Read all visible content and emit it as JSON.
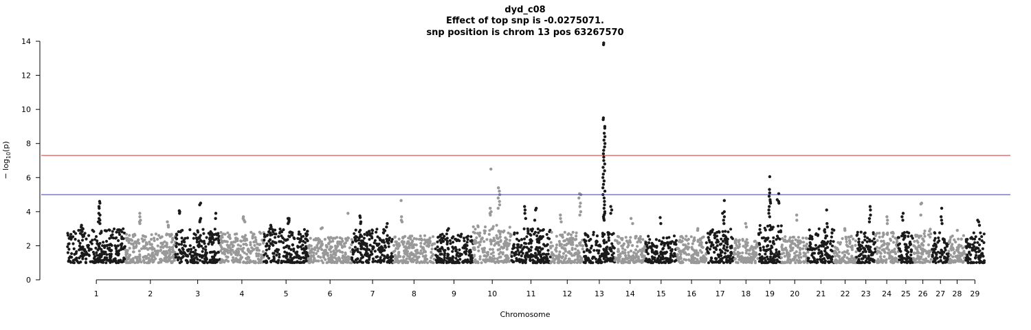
{
  "chart_data": {
    "type": "scatter",
    "title": "dyd_c08",
    "subtitle_lines": [
      "Effect of top snp is -0.0275071.",
      "snp position is chrom 13 pos 63267570"
    ],
    "xlabel": "Chromosome",
    "ylabel_prefix": "− log",
    "ylabel_sub": "10",
    "ylabel_suffix": "(p)",
    "ylim": [
      0,
      14
    ],
    "yticks": [
      0,
      2,
      4,
      6,
      8,
      10,
      12,
      14
    ],
    "grid": false,
    "colors": {
      "odd": "#1a1a1a",
      "even": "#999999"
    },
    "thresholds": [
      {
        "value": 7.3,
        "color": "#cc3333"
      },
      {
        "value": 5.0,
        "color": "#3333cc"
      }
    ],
    "chromosomes": [
      {
        "label": "1",
        "size": 158
      },
      {
        "label": "2",
        "size": 137
      },
      {
        "label": "3",
        "size": 121
      },
      {
        "label": "4",
        "size": 120
      },
      {
        "label": "5",
        "size": 121
      },
      {
        "label": "6",
        "size": 119
      },
      {
        "label": "7",
        "size": 113
      },
      {
        "label": "8",
        "size": 113
      },
      {
        "label": "9",
        "size": 105
      },
      {
        "label": "10",
        "size": 104
      },
      {
        "label": "11",
        "size": 107
      },
      {
        "label": "12",
        "size": 91
      },
      {
        "label": "13",
        "size": 84
      },
      {
        "label": "14",
        "size": 84
      },
      {
        "label": "15",
        "size": 85
      },
      {
        "label": "16",
        "size": 81
      },
      {
        "label": "17",
        "size": 75
      },
      {
        "label": "18",
        "size": 66
      },
      {
        "label": "19",
        "size": 64
      },
      {
        "label": "20",
        "size": 72
      },
      {
        "label": "21",
        "size": 71
      },
      {
        "label": "22",
        "size": 61
      },
      {
        "label": "23",
        "size": 52
      },
      {
        "label": "24",
        "size": 62
      },
      {
        "label": "25",
        "size": 42
      },
      {
        "label": "26",
        "size": 51
      },
      {
        "label": "27",
        "size": 45
      },
      {
        "label": "28",
        "size": 46
      },
      {
        "label": "29",
        "size": 51
      }
    ],
    "background_max": [
      3.0,
      2.7,
      3.0,
      2.8,
      3.0,
      2.5,
      3.0,
      2.6,
      2.7,
      3.2,
      3.0,
      2.8,
      2.8,
      2.6,
      2.6,
      2.6,
      3.0,
      2.4,
      3.2,
      2.6,
      3.0,
      2.6,
      2.8,
      2.8,
      2.8,
      3.0,
      2.8,
      2.6,
      2.8
    ],
    "peaks": [
      {
        "chrom": "1",
        "pos": 0.55,
        "values": [
          4.6,
          4.5,
          4.3,
          4.2,
          3.9,
          3.8,
          3.6,
          3.5,
          3.4,
          3.3
        ]
      },
      {
        "chrom": "1",
        "pos": 0.25,
        "values": [
          3.2,
          3.1,
          3.0
        ]
      },
      {
        "chrom": "2",
        "pos": 0.3,
        "values": [
          3.9,
          3.7,
          3.5,
          3.4,
          3.3
        ]
      },
      {
        "chrom": "2",
        "pos": 0.85,
        "values": [
          3.4,
          3.2,
          3.1
        ]
      },
      {
        "chrom": "3",
        "pos": 0.08,
        "values": [
          4.05,
          4.0,
          3.9
        ]
      },
      {
        "chrom": "3",
        "pos": 0.55,
        "values": [
          4.5,
          4.4,
          3.6,
          3.5,
          3.4
        ]
      },
      {
        "chrom": "3",
        "pos": 0.92,
        "values": [
          3.9,
          3.6
        ]
      },
      {
        "chrom": "4",
        "pos": 0.55,
        "values": [
          3.7,
          3.6,
          3.5,
          3.4
        ]
      },
      {
        "chrom": "5",
        "pos": 0.15,
        "values": [
          3.2,
          3.1
        ]
      },
      {
        "chrom": "5",
        "pos": 0.55,
        "values": [
          3.6,
          3.6,
          3.5,
          3.4,
          3.3
        ]
      },
      {
        "chrom": "6",
        "pos": 0.3,
        "values": [
          3.05,
          3.0
        ]
      },
      {
        "chrom": "6",
        "pos": 0.92,
        "values": [
          3.9
        ]
      },
      {
        "chrom": "7",
        "pos": 0.2,
        "values": [
          3.75,
          3.65,
          3.4,
          3.3
        ]
      },
      {
        "chrom": "7",
        "pos": 0.85,
        "values": [
          3.3,
          3.1
        ]
      },
      {
        "chrom": "8",
        "pos": 0.2,
        "values": [
          4.65,
          3.7,
          3.5,
          3.4
        ]
      },
      {
        "chrom": "9",
        "pos": 0.35,
        "values": [
          3.0,
          2.9
        ]
      },
      {
        "chrom": "10",
        "pos": 0.45,
        "values": [
          6.5,
          4.2,
          4.0,
          3.9,
          3.8
        ]
      },
      {
        "chrom": "10",
        "pos": 0.68,
        "values": [
          5.4,
          5.2,
          5.0,
          4.8,
          4.6,
          4.4,
          4.2
        ]
      },
      {
        "chrom": "11",
        "pos": 0.35,
        "values": [
          4.3,
          4.1,
          3.9,
          3.6
        ]
      },
      {
        "chrom": "11",
        "pos": 0.62,
        "values": [
          4.2,
          4.1,
          3.5
        ]
      },
      {
        "chrom": "12",
        "pos": 0.3,
        "values": [
          3.8,
          3.6,
          3.4
        ]
      },
      {
        "chrom": "12",
        "pos": 0.88,
        "values": [
          5.05,
          5.0,
          4.8,
          4.5,
          4.3,
          4.0,
          3.8
        ]
      },
      {
        "chrom": "13",
        "pos": 0.65,
        "values": [
          13.9,
          13.8,
          9.5,
          9.4,
          9.0,
          8.9,
          8.6,
          8.4,
          8.2,
          8.0,
          7.8,
          7.6,
          7.4,
          7.2,
          7.0,
          6.8,
          6.6,
          6.4,
          6.2,
          6.0,
          5.8,
          5.6,
          5.4,
          5.2,
          5.0,
          4.8,
          4.6,
          4.4,
          4.2,
          4.0,
          3.9,
          3.8,
          3.7,
          3.6,
          3.5
        ]
      },
      {
        "chrom": "13",
        "pos": 0.9,
        "values": [
          4.3,
          4.1,
          3.9
        ]
      },
      {
        "chrom": "14",
        "pos": 0.55,
        "values": [
          3.6,
          3.3
        ]
      },
      {
        "chrom": "15",
        "pos": 0.5,
        "values": [
          3.65,
          3.3
        ]
      },
      {
        "chrom": "16",
        "pos": 0.7,
        "values": [
          3.0,
          2.9
        ]
      },
      {
        "chrom": "17",
        "pos": 0.62,
        "values": [
          4.65,
          4.0,
          3.9,
          3.7,
          3.5,
          3.3
        ]
      },
      {
        "chrom": "18",
        "pos": 0.5,
        "values": [
          3.3,
          3.1
        ]
      },
      {
        "chrom": "19",
        "pos": 0.5,
        "values": [
          6.05,
          5.3,
          5.1,
          4.9,
          4.7,
          4.6,
          4.5,
          4.3,
          4.1,
          3.9,
          3.7
        ]
      },
      {
        "chrom": "19",
        "pos": 0.85,
        "values": [
          5.05,
          4.7,
          4.6,
          4.5
        ]
      },
      {
        "chrom": "20",
        "pos": 0.55,
        "values": [
          3.8,
          3.5
        ]
      },
      {
        "chrom": "21",
        "pos": 0.75,
        "values": [
          4.1,
          3.3,
          3.1
        ]
      },
      {
        "chrom": "22",
        "pos": 0.5,
        "values": [
          3.0,
          2.9
        ]
      },
      {
        "chrom": "23",
        "pos": 0.7,
        "values": [
          4.3,
          4.1,
          3.8,
          3.6,
          3.4
        ]
      },
      {
        "chrom": "24",
        "pos": 0.5,
        "values": [
          3.7,
          3.5,
          3.3
        ]
      },
      {
        "chrom": "25",
        "pos": 0.3,
        "values": [
          3.9,
          3.7,
          3.5
        ]
      },
      {
        "chrom": "26",
        "pos": 0.4,
        "values": [
          4.5,
          4.45,
          3.8
        ]
      },
      {
        "chrom": "27",
        "pos": 0.55,
        "values": [
          4.2,
          3.7,
          3.5,
          3.3
        ]
      },
      {
        "chrom": "28",
        "pos": 0.5,
        "values": [
          2.9
        ]
      },
      {
        "chrom": "29",
        "pos": 0.7,
        "values": [
          3.5,
          3.4,
          3.2
        ]
      }
    ]
  }
}
